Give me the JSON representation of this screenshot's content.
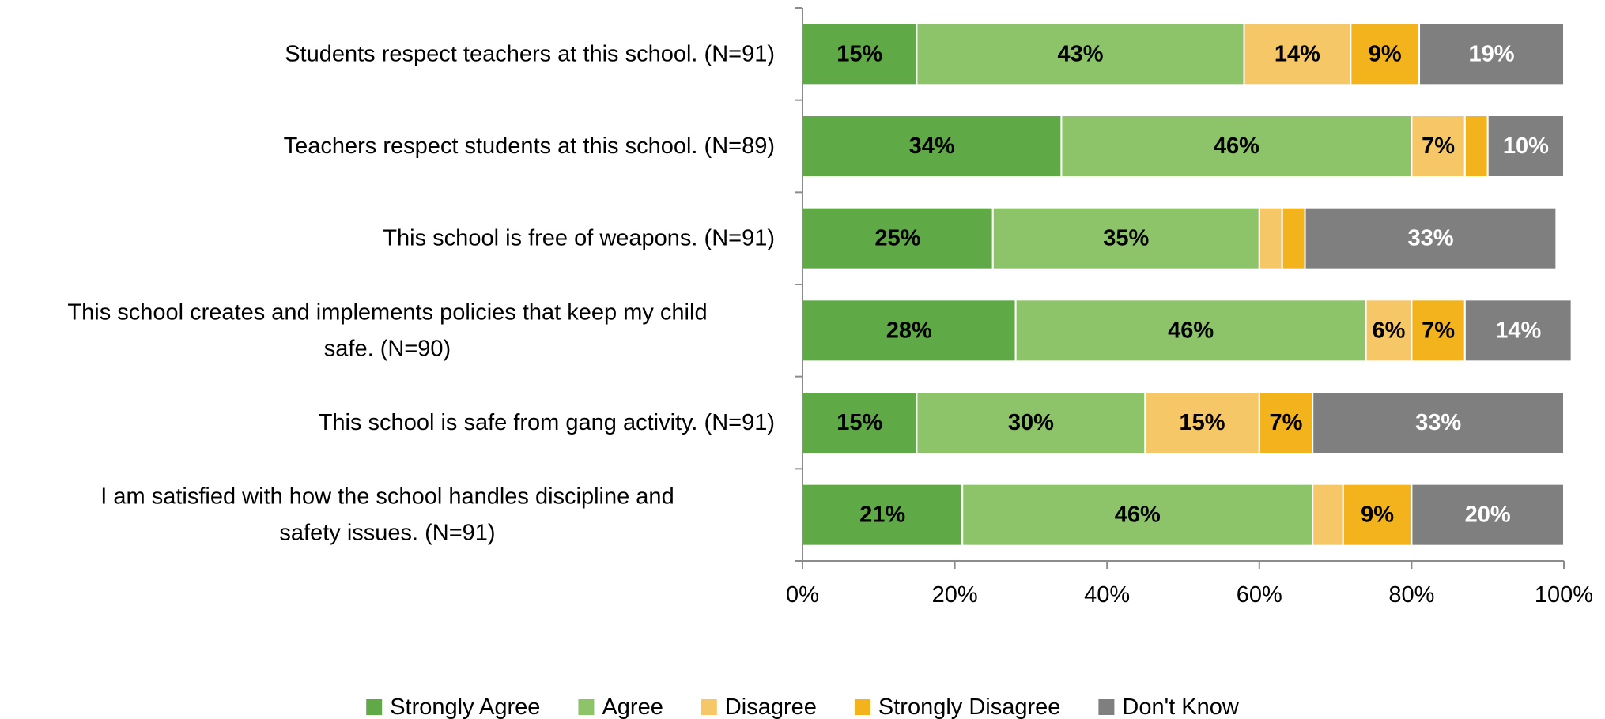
{
  "chart_data": {
    "type": "bar",
    "orientation": "horizontal",
    "stacked": "percent",
    "categories": [
      "Students respect teachers at this school. (N=91)",
      "Teachers respect students at this school. (N=89)",
      "This school is free of weapons. (N=91)",
      "This school creates and implements policies that keep my child safe. (N=90)",
      "This school is safe from gang activity. (N=91)",
      "I am satisfied with how the school handles discipline and safety issues. (N=91)"
    ],
    "series": [
      {
        "name": "Strongly Agree",
        "color": "#5faa46",
        "label_color": "#000000",
        "values": [
          15,
          34,
          25,
          28,
          15,
          21
        ],
        "labels": [
          "15%",
          "34%",
          "25%",
          "28%",
          "15%",
          "21%"
        ]
      },
      {
        "name": "Agree",
        "color": "#8dc46a",
        "label_color": "#000000",
        "values": [
          43,
          46,
          35,
          46,
          30,
          46
        ],
        "labels": [
          "43%",
          "46%",
          "35%",
          "46%",
          "30%",
          "46%"
        ]
      },
      {
        "name": "Disagree",
        "color": "#f6c767",
        "label_color": "#000000",
        "values": [
          14,
          7,
          3,
          6,
          15,
          4
        ],
        "labels": [
          "14%",
          "7%",
          "",
          "6%",
          "15%",
          ""
        ]
      },
      {
        "name": "Strongly Disagree",
        "color": "#f2b31c",
        "label_color": "#000000",
        "values": [
          9,
          3,
          3,
          7,
          7,
          9
        ],
        "labels": [
          "9%",
          "",
          "",
          "7%",
          "7%",
          "9%"
        ]
      },
      {
        "name": "Don't Know",
        "color": "#7f7f7f",
        "label_color": "#ffffff",
        "values": [
          19,
          10,
          33,
          14,
          33,
          20
        ],
        "labels": [
          "19%",
          "10%",
          "33%",
          "14%",
          "33%",
          "20%"
        ]
      }
    ],
    "xlim": [
      0,
      100
    ],
    "xticks": [
      "0%",
      "20%",
      "40%",
      "60%",
      "80%",
      "100%"
    ],
    "grid": false,
    "legend_position": "bottom"
  }
}
